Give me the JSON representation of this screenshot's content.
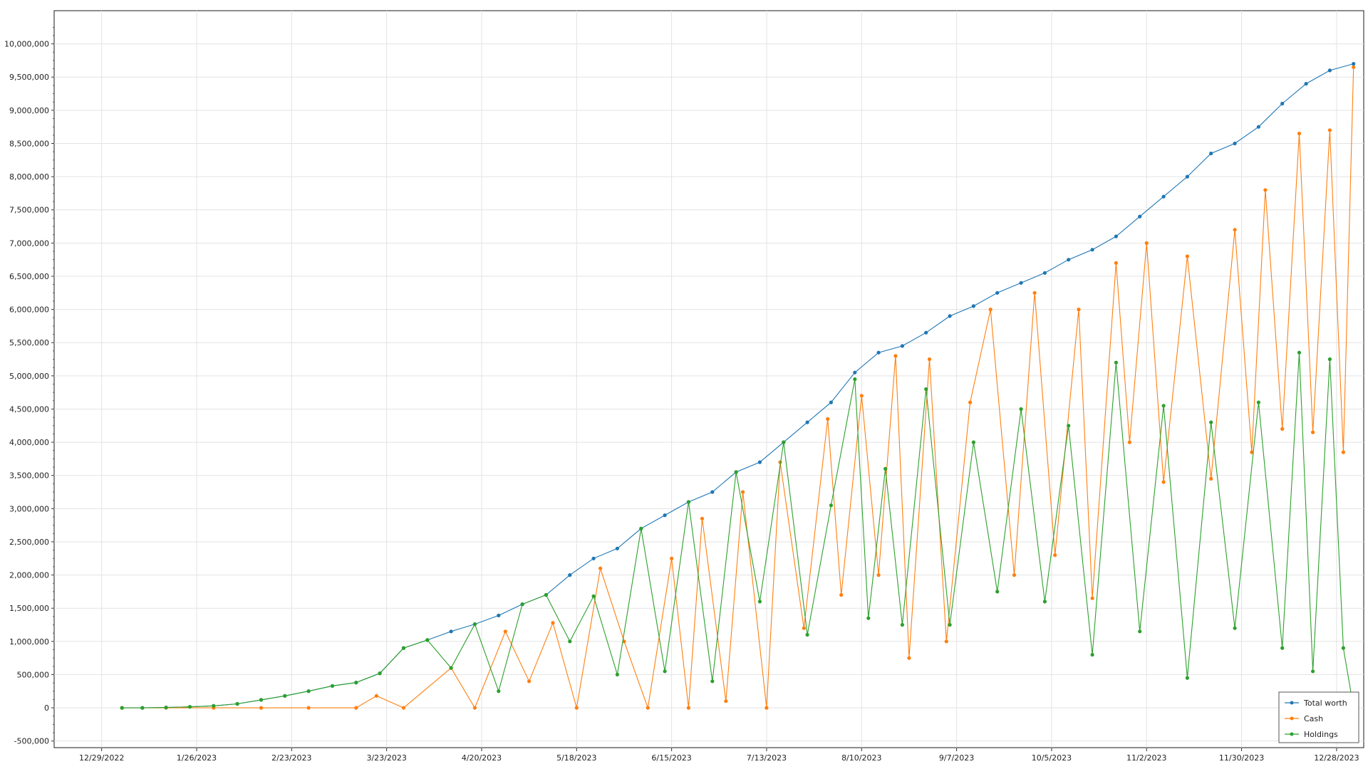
{
  "chart_data": {
    "type": "line",
    "x_ticks": [
      "12/29/2022",
      "1/26/2023",
      "2/23/2023",
      "3/23/2023",
      "4/20/2023",
      "5/18/2023",
      "6/15/2023",
      "7/13/2023",
      "8/10/2023",
      "9/7/2023",
      "10/5/2023",
      "11/2/2023",
      "11/30/2023",
      "12/28/2023"
    ],
    "x_range": [
      "12/15/2022",
      "1/5/2024"
    ],
    "y_ticks": [
      "-500,000",
      "0",
      "500,000",
      "1,000,000",
      "1,500,000",
      "2,000,000",
      "2,500,000",
      "3,000,000",
      "3,500,000",
      "4,000,000",
      "4,500,000",
      "5,000,000",
      "5,500,000",
      "6,000,000",
      "6,500,000",
      "7,000,000",
      "7,500,000",
      "8,000,000",
      "8,500,000",
      "9,000,000",
      "9,500,000",
      "10,000,000"
    ],
    "y_range": [
      -600000,
      10500000
    ],
    "grid": true,
    "legend_position": "bottom-right",
    "series": [
      {
        "name": "Total worth",
        "color": "#1f77b4",
        "points": [
          [
            "1/4/2023",
            0
          ],
          [
            "1/10/2023",
            0
          ],
          [
            "1/17/2023",
            5000
          ],
          [
            "1/24/2023",
            15000
          ],
          [
            "1/31/2023",
            30000
          ],
          [
            "2/7/2023",
            60000
          ],
          [
            "2/14/2023",
            120000
          ],
          [
            "2/21/2023",
            180000
          ],
          [
            "2/28/2023",
            250000
          ],
          [
            "3/7/2023",
            330000
          ],
          [
            "3/14/2023",
            380000
          ],
          [
            "3/21/2023",
            520000
          ],
          [
            "3/28/2023",
            900000
          ],
          [
            "4/4/2023",
            1020000
          ],
          [
            "4/11/2023",
            1150000
          ],
          [
            "4/18/2023",
            1260000
          ],
          [
            "4/25/2023",
            1390000
          ],
          [
            "5/2/2023",
            1560000
          ],
          [
            "5/9/2023",
            1700000
          ],
          [
            "5/16/2023",
            2000000
          ],
          [
            "5/23/2023",
            2250000
          ],
          [
            "5/30/2023",
            2400000
          ],
          [
            "6/6/2023",
            2700000
          ],
          [
            "6/13/2023",
            2900000
          ],
          [
            "6/20/2023",
            3100000
          ],
          [
            "6/27/2023",
            3250000
          ],
          [
            "7/4/2023",
            3550000
          ],
          [
            "7/11/2023",
            3700000
          ],
          [
            "7/18/2023",
            4000000
          ],
          [
            "7/25/2023",
            4300000
          ],
          [
            "8/1/2023",
            4600000
          ],
          [
            "8/8/2023",
            5050000
          ],
          [
            "8/15/2023",
            5350000
          ],
          [
            "8/22/2023",
            5450000
          ],
          [
            "8/29/2023",
            5650000
          ],
          [
            "9/5/2023",
            5900000
          ],
          [
            "9/12/2023",
            6050000
          ],
          [
            "9/19/2023",
            6250000
          ],
          [
            "9/26/2023",
            6400000
          ],
          [
            "10/3/2023",
            6550000
          ],
          [
            "10/10/2023",
            6750000
          ],
          [
            "10/17/2023",
            6900000
          ],
          [
            "10/24/2023",
            7100000
          ],
          [
            "10/31/2023",
            7400000
          ],
          [
            "11/7/2023",
            7700000
          ],
          [
            "11/14/2023",
            8000000
          ],
          [
            "11/21/2023",
            8350000
          ],
          [
            "11/28/2023",
            8500000
          ],
          [
            "12/5/2023",
            8750000
          ],
          [
            "12/12/2023",
            9100000
          ],
          [
            "12/19/2023",
            9400000
          ],
          [
            "12/26/2023",
            9600000
          ],
          [
            "1/2/2024",
            9700000
          ]
        ]
      },
      {
        "name": "Cash",
        "color": "#ff7f0e",
        "points": [
          [
            "1/4/2023",
            0
          ],
          [
            "1/17/2023",
            0
          ],
          [
            "1/31/2023",
            0
          ],
          [
            "2/14/2023",
            0
          ],
          [
            "2/28/2023",
            0
          ],
          [
            "3/14/2023",
            0
          ],
          [
            "3/20/2023",
            180000
          ],
          [
            "3/28/2023",
            0
          ],
          [
            "4/11/2023",
            600000
          ],
          [
            "4/18/2023",
            0
          ],
          [
            "4/27/2023",
            1150000
          ],
          [
            "5/4/2023",
            400000
          ],
          [
            "5/11/2023",
            1280000
          ],
          [
            "5/18/2023",
            0
          ],
          [
            "5/25/2023",
            2100000
          ],
          [
            "6/1/2023",
            1000000
          ],
          [
            "6/8/2023",
            0
          ],
          [
            "6/15/2023",
            2250000
          ],
          [
            "6/20/2023",
            0
          ],
          [
            "6/24/2023",
            2850000
          ],
          [
            "7/1/2023",
            100000
          ],
          [
            "7/6/2023",
            3250000
          ],
          [
            "7/13/2023",
            0
          ],
          [
            "7/17/2023",
            3700000
          ],
          [
            "7/24/2023",
            1200000
          ],
          [
            "7/31/2023",
            4350000
          ],
          [
            "8/4/2023",
            1700000
          ],
          [
            "8/10/2023",
            4700000
          ],
          [
            "8/15/2023",
            2000000
          ],
          [
            "8/20/2023",
            5300000
          ],
          [
            "8/24/2023",
            750000
          ],
          [
            "8/30/2023",
            5250000
          ],
          [
            "9/4/2023",
            1000000
          ],
          [
            "9/11/2023",
            4600000
          ],
          [
            "9/17/2023",
            6000000
          ],
          [
            "9/24/2023",
            2000000
          ],
          [
            "9/30/2023",
            6250000
          ],
          [
            "10/6/2023",
            2300000
          ],
          [
            "10/13/2023",
            6000000
          ],
          [
            "10/17/2023",
            1650000
          ],
          [
            "10/24/2023",
            6700000
          ],
          [
            "10/28/2023",
            4000000
          ],
          [
            "11/2/2023",
            7000000
          ],
          [
            "11/7/2023",
            3400000
          ],
          [
            "11/14/2023",
            6800000
          ],
          [
            "11/21/2023",
            3450000
          ],
          [
            "11/28/2023",
            7200000
          ],
          [
            "12/3/2023",
            3850000
          ],
          [
            "12/7/2023",
            7800000
          ],
          [
            "12/12/2023",
            4200000
          ],
          [
            "12/17/2023",
            8650000
          ],
          [
            "12/21/2023",
            4150000
          ],
          [
            "12/26/2023",
            8700000
          ],
          [
            "12/30/2023",
            3850000
          ],
          [
            "1/2/2024",
            9650000
          ]
        ]
      },
      {
        "name": "Holdings",
        "color": "#2ca02c",
        "points": [
          [
            "1/4/2023",
            0
          ],
          [
            "1/10/2023",
            0
          ],
          [
            "1/17/2023",
            5000
          ],
          [
            "1/24/2023",
            15000
          ],
          [
            "1/31/2023",
            30000
          ],
          [
            "2/7/2023",
            60000
          ],
          [
            "2/14/2023",
            120000
          ],
          [
            "2/21/2023",
            180000
          ],
          [
            "2/28/2023",
            250000
          ],
          [
            "3/7/2023",
            330000
          ],
          [
            "3/14/2023",
            380000
          ],
          [
            "3/21/2023",
            520000
          ],
          [
            "3/28/2023",
            900000
          ],
          [
            "4/4/2023",
            1020000
          ],
          [
            "4/11/2023",
            600000
          ],
          [
            "4/18/2023",
            1260000
          ],
          [
            "4/25/2023",
            250000
          ],
          [
            "5/2/2023",
            1560000
          ],
          [
            "5/9/2023",
            1700000
          ],
          [
            "5/16/2023",
            1000000
          ],
          [
            "5/23/2023",
            1680000
          ],
          [
            "5/30/2023",
            500000
          ],
          [
            "6/6/2023",
            2700000
          ],
          [
            "6/13/2023",
            550000
          ],
          [
            "6/20/2023",
            3100000
          ],
          [
            "6/27/2023",
            400000
          ],
          [
            "7/4/2023",
            3550000
          ],
          [
            "7/11/2023",
            1600000
          ],
          [
            "7/18/2023",
            4000000
          ],
          [
            "7/25/2023",
            1100000
          ],
          [
            "8/1/2023",
            3050000
          ],
          [
            "8/8/2023",
            4950000
          ],
          [
            "8/12/2023",
            1350000
          ],
          [
            "8/17/2023",
            3600000
          ],
          [
            "8/22/2023",
            1250000
          ],
          [
            "8/29/2023",
            4800000
          ],
          [
            "9/5/2023",
            1250000
          ],
          [
            "9/12/2023",
            4000000
          ],
          [
            "9/19/2023",
            1750000
          ],
          [
            "9/26/2023",
            4500000
          ],
          [
            "10/3/2023",
            1600000
          ],
          [
            "10/10/2023",
            4250000
          ],
          [
            "10/17/2023",
            800000
          ],
          [
            "10/24/2023",
            5200000
          ],
          [
            "10/31/2023",
            1150000
          ],
          [
            "11/7/2023",
            4550000
          ],
          [
            "11/14/2023",
            450000
          ],
          [
            "11/21/2023",
            4300000
          ],
          [
            "11/28/2023",
            1200000
          ],
          [
            "12/5/2023",
            4600000
          ],
          [
            "12/12/2023",
            900000
          ],
          [
            "12/17/2023",
            5350000
          ],
          [
            "12/21/2023",
            550000
          ],
          [
            "12/26/2023",
            5250000
          ],
          [
            "12/30/2023",
            900000
          ],
          [
            "1/2/2024",
            0
          ]
        ]
      }
    ]
  }
}
